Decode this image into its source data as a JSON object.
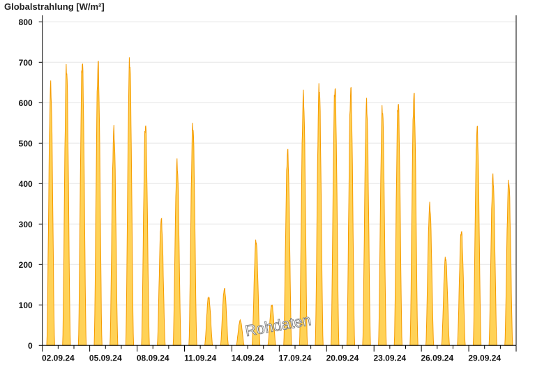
{
  "chart_data": {
    "type": "area",
    "title": "Globalstrahlung [W/m²]",
    "ylabel": "",
    "xlabel": "",
    "ylim": [
      0,
      800
    ],
    "yticks": [
      0,
      100,
      200,
      300,
      400,
      500,
      600,
      700,
      800
    ],
    "grid": true,
    "xtick_labels": [
      "02.09.24",
      "05.09.24",
      "08.09.24",
      "11.09.24",
      "14.09.24",
      "17.09.24",
      "20.09.24",
      "23.09.24",
      "26.09.24",
      "29.09.24"
    ],
    "series": [
      {
        "dates": [
          "02.09",
          "03.09",
          "04.09",
          "05.09",
          "06.09",
          "07.09",
          "08.09",
          "09.09",
          "10.09",
          "11.09",
          "12.09",
          "13.09",
          "14.09",
          "15.09",
          "16.09",
          "17.09",
          "18.09",
          "19.09",
          "20.09",
          "21.09",
          "22.09",
          "23.09",
          "24.09",
          "25.09",
          "26.09",
          "27.09",
          "28.09",
          "29.09",
          "30.09",
          "01.10"
        ],
        "daily_peak": [
          655,
          705,
          718,
          713,
          545,
          722,
          560,
          318,
          462,
          558,
          123,
          143,
          63,
          265,
          103,
          492,
          632,
          657,
          655,
          647,
          612,
          602,
          615,
          633,
          355,
          222,
          290,
          550,
          425,
          415
        ]
      }
    ],
    "watermark": "Rohdaten",
    "colors": {
      "fill": "#ffd257",
      "stroke": "#f59b00",
      "grid": "#e6e6e6",
      "axis": "#000000"
    }
  }
}
